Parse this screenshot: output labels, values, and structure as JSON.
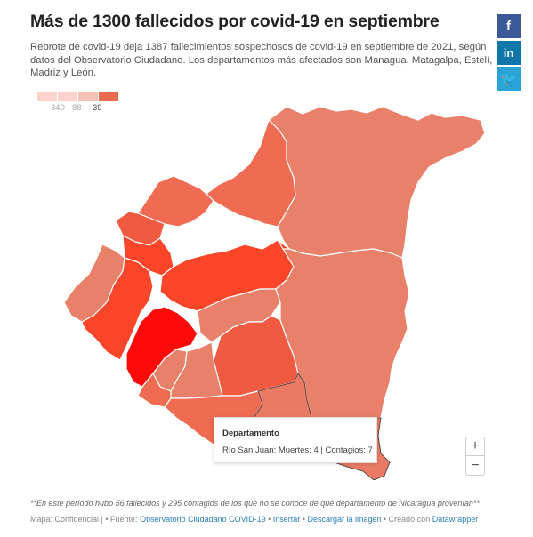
{
  "title": "Más de 1300 fallecidos por covid-19 en septiembre",
  "subtitle": "Rebrote de covid-19 deja 1387 fallecimientos sospechosos de covid-19 en septiembre de 2021, según datos del Observatorio Ciudadano. Los departamentos más afectados son Managua, Matagalpa, Estelí, Madriz y León.",
  "share": {
    "facebook": "f",
    "linkedin": "in",
    "twitter": "🐦"
  },
  "legend": {
    "colors": [
      "#fbd3cc",
      "#fbd3cc",
      "#f8c1b6",
      "#e96b50"
    ],
    "labels": [
      "340",
      "88",
      "39"
    ]
  },
  "map": {
    "colors": {
      "light": "#e9806a",
      "mid": "#ea7a63",
      "medium": "#ef6b52",
      "strong": "#f05a40",
      "stronger": "#fd4529",
      "darkest": "#ff0a0a",
      "border": "#ffffff"
    }
  },
  "tooltip": {
    "title": "Departamento",
    "body": "Río San Juan: Muertes: 4 | Contagios: 7"
  },
  "zoom": {
    "in": "+",
    "out": "−"
  },
  "footnote": "**En este período hubo 56 fallecidos y 295 contagios de los que no se conoce de qué departamento de Nicaragua provenían**",
  "footer": {
    "prefix": "Mapa: Confidencial | • Fuente: ",
    "source": "Observatorio Ciudadano COVID-19",
    "sep1": " • ",
    "embed": "Insertar",
    "sep2": " • ",
    "download": "Descargar la imagen",
    "sep3": " • Creado con ",
    "tool": "Datawrapper"
  }
}
